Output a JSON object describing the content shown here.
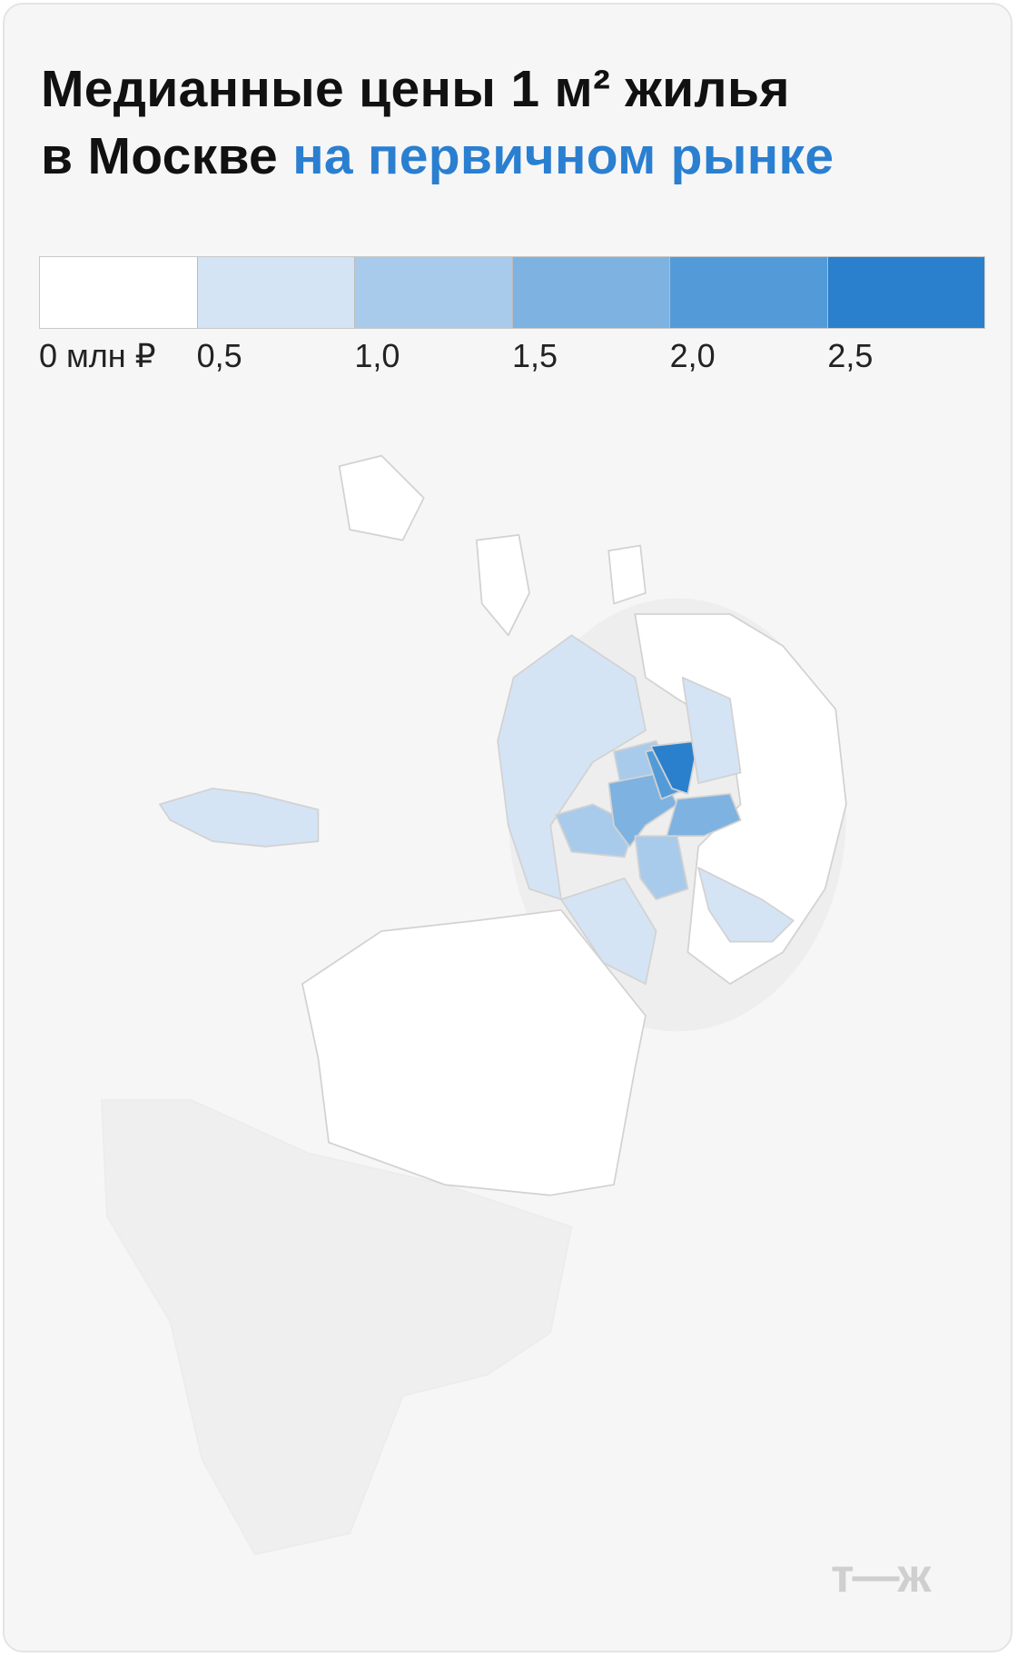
{
  "header": {
    "title_line1": "Медианные цены 1 м² жилья",
    "title_line2": "в Москве",
    "title_highlight": "на первичном рынке"
  },
  "legend": {
    "labels": [
      "0 млн ₽",
      "0,5",
      "1,0",
      "1,5",
      "2,0",
      "2,5"
    ]
  },
  "logo": "т—ж"
}
